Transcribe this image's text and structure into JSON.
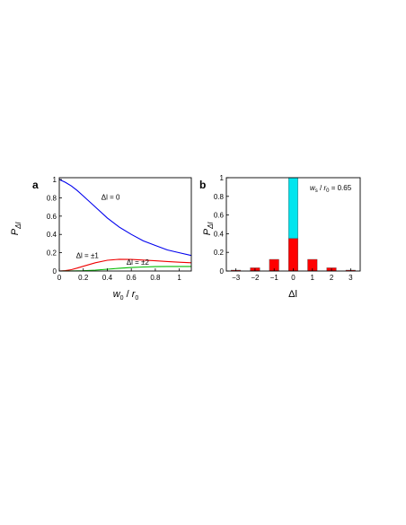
{
  "chart_data": [
    {
      "panel": "a",
      "type": "line",
      "xlabel_main": "w",
      "xlabel_main_sub": "0",
      "xlabel_sep": " / ",
      "xlabel_den": "r",
      "xlabel_den_sub": "0",
      "ylabel_main": "P",
      "ylabel_sub": "Δl",
      "xlim": [
        0,
        1.1
      ],
      "ylim": [
        0,
        1.02
      ],
      "xticks": [
        "0",
        "0.2",
        "0.4",
        "0.6",
        "0.8",
        "1"
      ],
      "yticks": [
        "0",
        "0.2",
        "0.4",
        "0.6",
        "0.8",
        "1"
      ],
      "grid": false,
      "series": [
        {
          "name": "Δl = 0",
          "color": "#0000ee",
          "x": [
            0,
            0.05,
            0.1,
            0.15,
            0.2,
            0.3,
            0.4,
            0.5,
            0.6,
            0.7,
            0.8,
            0.9,
            1.0,
            1.1
          ],
          "y": [
            1.0,
            0.97,
            0.93,
            0.88,
            0.82,
            0.7,
            0.58,
            0.48,
            0.4,
            0.33,
            0.28,
            0.23,
            0.2,
            0.17
          ]
        },
        {
          "name": "Δl = ±1",
          "color": "#ee0000",
          "x": [
            0,
            0.05,
            0.1,
            0.15,
            0.2,
            0.3,
            0.4,
            0.5,
            0.6,
            0.7,
            0.8,
            0.9,
            1.0,
            1.1
          ],
          "y": [
            0,
            0.004,
            0.015,
            0.032,
            0.052,
            0.09,
            0.118,
            0.128,
            0.127,
            0.12,
            0.112,
            0.104,
            0.096,
            0.09
          ]
        },
        {
          "name": "Δl = ±2",
          "color": "#00bb00",
          "x": [
            0,
            0.1,
            0.2,
            0.3,
            0.4,
            0.5,
            0.6,
            0.7,
            0.8,
            0.9,
            1.0,
            1.1
          ],
          "y": [
            0,
            0.0005,
            0.003,
            0.01,
            0.02,
            0.03,
            0.038,
            0.044,
            0.048,
            0.05,
            0.05,
            0.05
          ]
        }
      ],
      "annotations": [
        {
          "text": "Δl = 0",
          "x": 0.35,
          "y": 0.78
        },
        {
          "text": "Δl = ±1",
          "x": 0.14,
          "y": 0.14
        },
        {
          "text": "Δl = ±2",
          "x": 0.56,
          "y": 0.07
        }
      ]
    },
    {
      "panel": "b",
      "type": "bar",
      "xlabel": "Δl",
      "ylabel_main": "P",
      "ylabel_sub": "Δl",
      "categories": [
        "−3",
        "−2",
        "−1",
        "0",
        "1",
        "2",
        "3"
      ],
      "ylim": [
        0,
        1.0
      ],
      "yticks": [
        "0",
        "0.2",
        "0.4",
        "0.6",
        "0.8",
        "1"
      ],
      "grid": false,
      "series": [
        {
          "color": "#ff0000",
          "values": [
            0.01,
            0.035,
            0.125,
            0.35,
            0.125,
            0.035,
            0.01
          ]
        },
        {
          "color": "#00e5ee",
          "values": [
            0,
            0,
            0,
            0.65,
            0,
            0,
            0
          ]
        }
      ],
      "annotation": {
        "w": "w",
        "w_sub": "s",
        "sep": " / ",
        "r": "r",
        "r_sub": "0",
        "value": " = 0.65"
      }
    }
  ]
}
